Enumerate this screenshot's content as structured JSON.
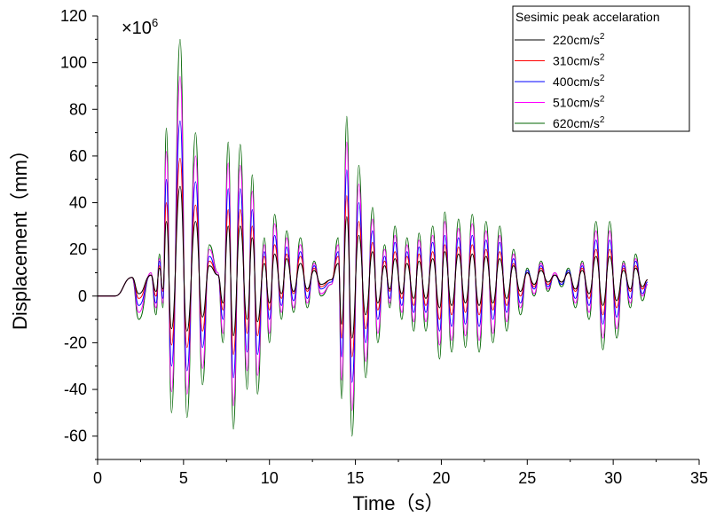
{
  "chart_data": {
    "type": "line",
    "xlabel": "Time（s）",
    "ylabel": "Displacement（mm）",
    "annotation": "×10",
    "annotation_exp": "6",
    "xlim": [
      0,
      35
    ],
    "ylim": [
      -70,
      120
    ],
    "xticks": [
      0,
      5,
      10,
      15,
      20,
      25,
      30,
      35
    ],
    "yticks": [
      -60,
      -40,
      -20,
      0,
      20,
      40,
      60,
      80,
      100,
      120
    ],
    "grid": false,
    "legend": {
      "title": "Sesimic peak accelaration",
      "placement": "top-right"
    },
    "x": [
      0,
      1,
      2,
      2.4,
      3.1,
      3.4,
      3.6,
      3.8,
      4.0,
      4.3,
      4.8,
      5.2,
      5.7,
      6.1,
      6.5,
      7.0,
      7.3,
      7.6,
      7.9,
      8.3,
      8.7,
      9.0,
      9.3,
      9.7,
      10.0,
      10.3,
      10.7,
      11.0,
      11.4,
      11.8,
      12.2,
      12.6,
      13.0,
      13.6,
      14.0,
      14.2,
      14.5,
      14.8,
      15.2,
      15.6,
      16.0,
      16.3,
      16.7,
      17.0,
      17.3,
      17.7,
      18.0,
      18.4,
      18.7,
      19.1,
      19.5,
      19.9,
      20.2,
      20.6,
      21.0,
      21.4,
      21.8,
      22.2,
      22.6,
      23.0,
      23.4,
      23.8,
      24.2,
      24.6,
      25.0,
      25.4,
      25.8,
      26.2,
      26.6,
      27.0,
      27.4,
      27.8,
      28.2,
      28.6,
      29.0,
      29.4,
      29.8,
      30.2,
      30.6,
      31.0,
      31.3,
      31.7,
      32.0
    ],
    "series": [
      {
        "name": "620cm/s",
        "sup": "2",
        "color": "#006400",
        "values": [
          0,
          0,
          8,
          -10,
          10,
          -8,
          18,
          -5,
          72,
          -50,
          110,
          -52,
          70,
          -38,
          22,
          10,
          -20,
          66,
          -57,
          65,
          -40,
          52,
          -42,
          25,
          -20,
          35,
          -10,
          28,
          -7,
          25,
          -5,
          15,
          0,
          5,
          25,
          -44,
          77,
          -60,
          56,
          -35,
          38,
          -20,
          22,
          -5,
          30,
          -10,
          25,
          -15,
          27,
          -15,
          30,
          -27,
          36,
          -24,
          33,
          -22,
          35,
          -24,
          32,
          -20,
          30,
          -15,
          20,
          -8,
          12,
          0,
          15,
          2,
          10,
          4,
          12,
          -5,
          15,
          -10,
          32,
          -23,
          32,
          -18,
          15,
          -5,
          18,
          -2,
          5
        ]
      },
      {
        "name": "510cm/s",
        "sup": "2",
        "color": "#ff00ff",
        "values": [
          0,
          0,
          8,
          -7,
          10,
          -5,
          16,
          -3,
          62,
          -41,
          94,
          -42,
          60,
          -31,
          20,
          10,
          -16,
          57,
          -47,
          56,
          -32,
          45,
          -34,
          22,
          -16,
          31,
          -7,
          25,
          -5,
          22,
          -3,
          14,
          1,
          5,
          22,
          -36,
          66,
          -49,
          48,
          -28,
          33,
          -16,
          20,
          -3,
          26,
          -7,
          22,
          -11,
          24,
          -11,
          26,
          -21,
          32,
          -19,
          29,
          -17,
          31,
          -19,
          28,
          -16,
          26,
          -11,
          18,
          -5,
          11,
          1,
          14,
          3,
          10,
          5,
          11,
          -3,
          14,
          -7,
          28,
          -18,
          28,
          -14,
          14,
          -3,
          16,
          0,
          5
        ]
      },
      {
        "name": "400cm/s",
        "sup": "2",
        "color": "#0000ff",
        "values": [
          0,
          0,
          8,
          -4,
          9,
          -3,
          15,
          -1,
          50,
          -30,
          75,
          -32,
          49,
          -22,
          17,
          9,
          -10,
          46,
          -35,
          46,
          -24,
          37,
          -25,
          19,
          -10,
          26,
          -4,
          21,
          -2,
          19,
          -1,
          13,
          3,
          6,
          19,
          -26,
          54,
          -37,
          40,
          -20,
          28,
          -10,
          17,
          -1,
          23,
          -4,
          19,
          -7,
          21,
          -7,
          23,
          -15,
          26,
          -13,
          25,
          -12,
          26,
          -13,
          24,
          -10,
          23,
          -7,
          16,
          -3,
          11,
          3,
          13,
          4,
          9,
          5,
          11,
          -1,
          13,
          -4,
          24,
          -12,
          24,
          -9,
          13,
          -1,
          15,
          1,
          6
        ]
      },
      {
        "name": "310cm/s",
        "sup": "2",
        "color": "#ff0000",
        "values": [
          0,
          0,
          8,
          -1,
          9,
          0,
          13,
          2,
          40,
          -21,
          59,
          -22,
          39,
          -15,
          15,
          9,
          -6,
          37,
          -25,
          37,
          -16,
          30,
          -17,
          17,
          -6,
          22,
          -1,
          18,
          1,
          17,
          2,
          12,
          4,
          7,
          17,
          -18,
          43,
          -26,
          32,
          -14,
          23,
          -6,
          15,
          2,
          19,
          -1,
          17,
          -4,
          18,
          -4,
          19,
          -10,
          22,
          -8,
          21,
          -7,
          22,
          -8,
          20,
          -6,
          19,
          -4,
          14,
          0,
          10,
          4,
          12,
          5,
          9,
          6,
          10,
          2,
          12,
          -1,
          20,
          -8,
          20,
          -5,
          12,
          2,
          13,
          3,
          7
        ]
      },
      {
        "name": "220cm/s",
        "sup": "2",
        "color": "#000000",
        "values": [
          0,
          0,
          8,
          1,
          9,
          2,
          12,
          3,
          32,
          -14,
          47,
          -15,
          32,
          -9,
          13,
          9,
          -3,
          30,
          -17,
          30,
          -10,
          25,
          -11,
          14,
          -3,
          18,
          1,
          16,
          2,
          14,
          3,
          11,
          5,
          7,
          14,
          -12,
          34,
          -18,
          26,
          -8,
          19,
          -3,
          13,
          3,
          16,
          1,
          14,
          -1,
          15,
          -1,
          16,
          -5,
          19,
          -4,
          18,
          -3,
          18,
          -4,
          17,
          -3,
          16,
          -1,
          13,
          2,
          10,
          5,
          11,
          6,
          9,
          6,
          10,
          3,
          11,
          1,
          17,
          -4,
          17,
          -2,
          11,
          3,
          12,
          4,
          7
        ]
      }
    ],
    "legend_order": [
      4,
      3,
      2,
      1,
      0
    ]
  }
}
